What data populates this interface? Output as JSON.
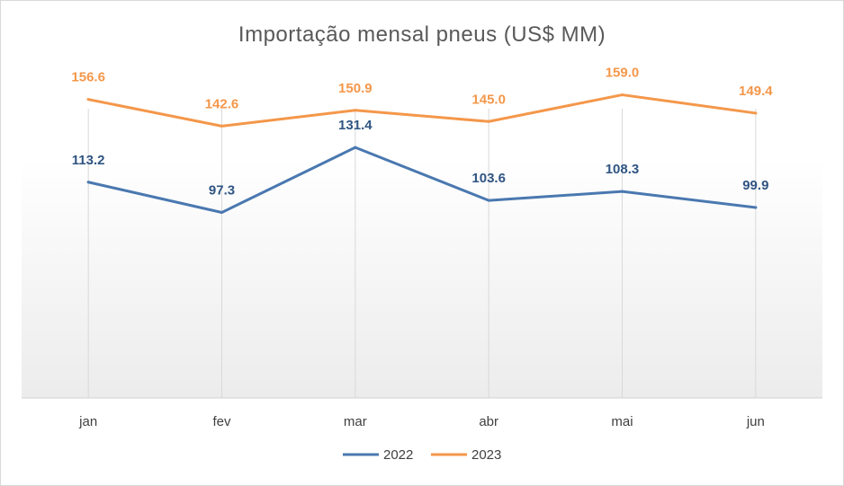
{
  "chart_data": {
    "type": "line",
    "title": "Importação mensal pneus (US$ MM)",
    "categories": [
      "jan",
      "fev",
      "mar",
      "abr",
      "mai",
      "jun"
    ],
    "series": [
      {
        "name": "2022",
        "color": "#4A78B0",
        "label_color": "#2F5482",
        "values": [
          113.2,
          97.3,
          131.4,
          103.6,
          108.3,
          99.9
        ]
      },
      {
        "name": "2023",
        "color": "#F4974A",
        "label_color": "#F4974A",
        "values": [
          156.6,
          142.6,
          150.9,
          145.0,
          159.0,
          149.4
        ]
      }
    ],
    "ylim": [
      0,
      180
    ],
    "labels": {
      "2022": [
        "113.2",
        "97.3",
        "131.4",
        "103.6",
        "108.3",
        "99.9"
      ],
      "2023": [
        "156.6",
        "142.6",
        "150.9",
        "145.0",
        "159.0",
        "149.4"
      ]
    },
    "gridlines": "vertical",
    "legend_position": "bottom"
  }
}
